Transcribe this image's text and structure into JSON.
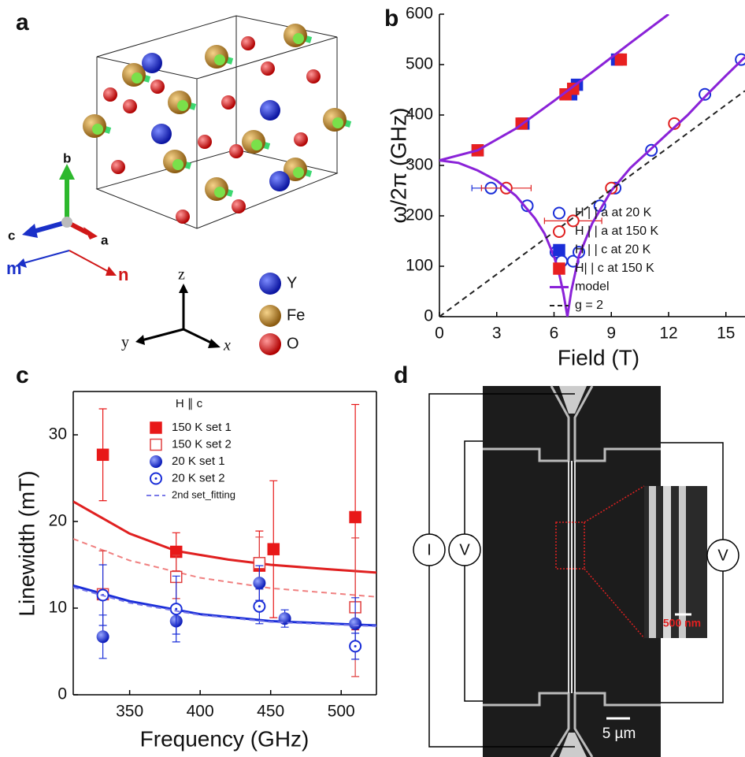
{
  "panel_labels": [
    "a",
    "b",
    "c",
    "d"
  ],
  "crystal": {
    "axis_labels": [
      "b",
      "c",
      "a",
      "m",
      "n"
    ],
    "frame_axes": [
      "z",
      "y",
      "x"
    ],
    "legend": [
      "Y",
      "Fe",
      "O"
    ]
  },
  "device": {
    "terminals": [
      "I",
      "V",
      "V"
    ],
    "scale_bars": [
      "5 µm",
      "500 nm"
    ]
  },
  "chart_data": [
    {
      "type": "scatter",
      "xlabel": "Field (T)",
      "ylabel": "ω/2π (GHz)",
      "xlim": [
        0,
        16
      ],
      "xticks": [
        0,
        3,
        6,
        9,
        12,
        15
      ],
      "ylim": [
        0,
        600
      ],
      "yticks": [
        0,
        100,
        200,
        300,
        400,
        500,
        600
      ],
      "legend": "lower right",
      "series": [
        {
          "name": "H | | a at 20 K",
          "color": "#1a2ed8",
          "marker": "open-circle",
          "x": [
            2.7,
            4.6,
            6.1,
            6.4,
            7.0,
            7.3,
            8.4,
            9.2,
            11.1,
            13.9,
            15.8
          ],
          "values": [
            255,
            220,
            128,
            110,
            110,
            128,
            220,
            255,
            330,
            441,
            510
          ],
          "xerr": [
            1.0,
            null,
            null,
            null,
            null,
            null,
            null,
            null,
            null,
            null,
            null
          ]
        },
        {
          "name": "H | | a at 150 K",
          "color": "#e02020",
          "marker": "open-circle",
          "x": [
            3.5,
            7.0,
            9.0,
            12.3
          ],
          "values": [
            255,
            190,
            255,
            383
          ],
          "xerr": [
            1.3,
            1.5,
            null,
            null
          ]
        },
        {
          "name": "H | | c at 20 K",
          "color": "#1a2ed8",
          "marker": "square",
          "x": [
            2.0,
            4.4,
            6.9,
            7.2,
            9.3
          ],
          "values": [
            330,
            383,
            441,
            460,
            510
          ]
        },
        {
          "name": "H| | c at 150 K",
          "color": "#e82020",
          "marker": "square",
          "x": [
            2.0,
            4.3,
            6.6,
            7.0,
            9.5
          ],
          "values": [
            330,
            383,
            441,
            452,
            510
          ]
        },
        {
          "name": "model",
          "color": "#8a22d8",
          "line": "solid",
          "x": [
            0,
            2,
            4,
            6,
            8,
            10,
            12,
            null,
            0,
            1,
            2,
            3,
            4,
            5,
            5.5,
            6,
            6.3,
            6.5,
            6.7,
            6.9,
            7.3,
            8,
            9,
            10,
            11,
            12,
            13,
            14,
            15,
            16
          ],
          "values": [
            310,
            330,
            373,
            428,
            485,
            543,
            600,
            null,
            310,
            305,
            290,
            270,
            240,
            195,
            165,
            120,
            80,
            45,
            0,
            50,
            120,
            185,
            250,
            295,
            330,
            365,
            400,
            440,
            478,
            515
          ]
        },
        {
          "name": "g = 2",
          "color": "#222222",
          "line": "dashed",
          "x": [
            0,
            16
          ],
          "values": [
            0,
            448
          ]
        }
      ]
    },
    {
      "type": "scatter",
      "xlabel": "Frequency (GHz)",
      "ylabel": "Linewidth (mT)",
      "legend_title": "H ∥ c",
      "xlim": [
        310,
        525
      ],
      "xticks": [
        350,
        400,
        450,
        500
      ],
      "ylim": [
        0,
        35
      ],
      "yticks": [
        0,
        10,
        20,
        30
      ],
      "legend": "upper left",
      "series": [
        {
          "name": "150 K set 1",
          "color": "#e81818",
          "marker": "square",
          "x": [
            331,
            383,
            442,
            452,
            510
          ],
          "values": [
            27.7,
            16.5,
            14.9,
            16.8,
            20.5
          ],
          "yerr": [
            5.3,
            2.2,
            4.0,
            7.9,
            13.0
          ]
        },
        {
          "name": "150 K set 2",
          "color": "#e04040",
          "marker": "open-square",
          "x": [
            331,
            383,
            442,
            510
          ],
          "values": [
            11.6,
            13.6,
            15.2,
            10.1
          ],
          "yerr": [
            5.0,
            2.5,
            3.0,
            8.0
          ]
        },
        {
          "name": "20 K set 1",
          "color": "#1a2ed8",
          "marker": "ball",
          "x": [
            331,
            383,
            442,
            460,
            510
          ],
          "values": [
            6.7,
            8.5,
            12.9,
            8.8,
            8.2
          ],
          "yerr": [
            2.5,
            1.5,
            2.0,
            1.0,
            3.0
          ]
        },
        {
          "name": "20 K set 2",
          "color": "#1a2ed8",
          "marker": "open-dot-circle",
          "x": [
            331,
            383,
            442,
            510
          ],
          "values": [
            11.5,
            9.9,
            10.2,
            5.6
          ],
          "yerr": [
            3.5,
            3.8,
            2.0,
            1.5
          ]
        },
        {
          "name": "2nd set_fitting",
          "color": "#7a7ae8",
          "line": "dashed",
          "x": [
            310,
            350,
            400,
            450,
            525
          ],
          "values": [
            12.4,
            10.6,
            9.2,
            8.4,
            7.9
          ]
        }
      ],
      "fits": [
        {
          "color": "#e02020",
          "line": "solid",
          "x": [
            310,
            350,
            383,
            420,
            450,
            490,
            525
          ],
          "values": [
            22.3,
            18.6,
            16.6,
            15.6,
            15.0,
            14.5,
            14.1
          ]
        },
        {
          "color": "#f08080",
          "line": "dashed",
          "x": [
            310,
            350,
            400,
            450,
            525
          ],
          "values": [
            18.0,
            15.5,
            13.5,
            12.3,
            11.3
          ]
        },
        {
          "color": "#1a2ed8",
          "line": "solid",
          "x": [
            310,
            350,
            400,
            450,
            525
          ],
          "values": [
            12.6,
            10.8,
            9.3,
            8.5,
            8.0
          ]
        }
      ]
    }
  ]
}
